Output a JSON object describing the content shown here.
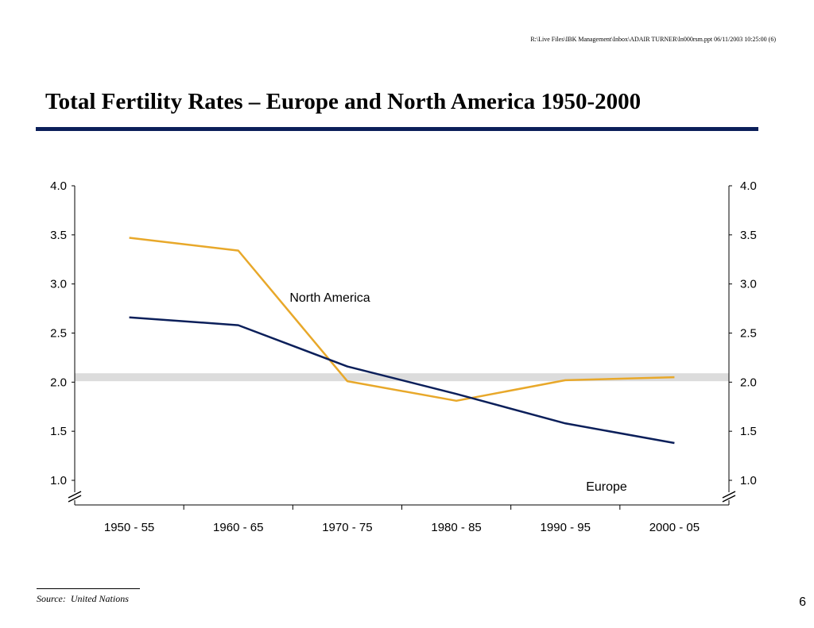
{
  "header": {
    "file_path": "R:\\Live Files\\IBK Management\\Inbox\\ADAIR TURNER\\ln000rsm.ppt 06/11/2003 10:25:00 (6)",
    "title": "Total Fertility Rates – Europe and North America 1950-2000"
  },
  "chart_data": {
    "type": "line",
    "title": "",
    "xlabel": "",
    "ylabel": "",
    "categories": [
      "1950 - 55",
      "1960 - 65",
      "1970 - 75",
      "1980 - 85",
      "1990 - 95",
      "2000 - 05"
    ],
    "ylim": [
      1.0,
      4.0
    ],
    "yticks": [
      "1.0",
      "1.5",
      "2.0",
      "2.5",
      "3.0",
      "3.5",
      "4.0"
    ],
    "y_axis": "both sides",
    "axis_break": true,
    "grid": false,
    "reference_band": {
      "value": 2.05,
      "color": "#dcdcdc"
    },
    "series": [
      {
        "name": "North America",
        "color": "#e8a82a",
        "values": [
          3.47,
          3.34,
          2.01,
          1.81,
          2.02,
          2.05
        ]
      },
      {
        "name": "Europe",
        "color": "#0b1f5a",
        "values": [
          2.66,
          2.58,
          2.16,
          1.88,
          1.58,
          1.38
        ]
      }
    ]
  },
  "footer": {
    "source_label": "Source:",
    "source_value": "United Nations",
    "page_number": "6"
  }
}
